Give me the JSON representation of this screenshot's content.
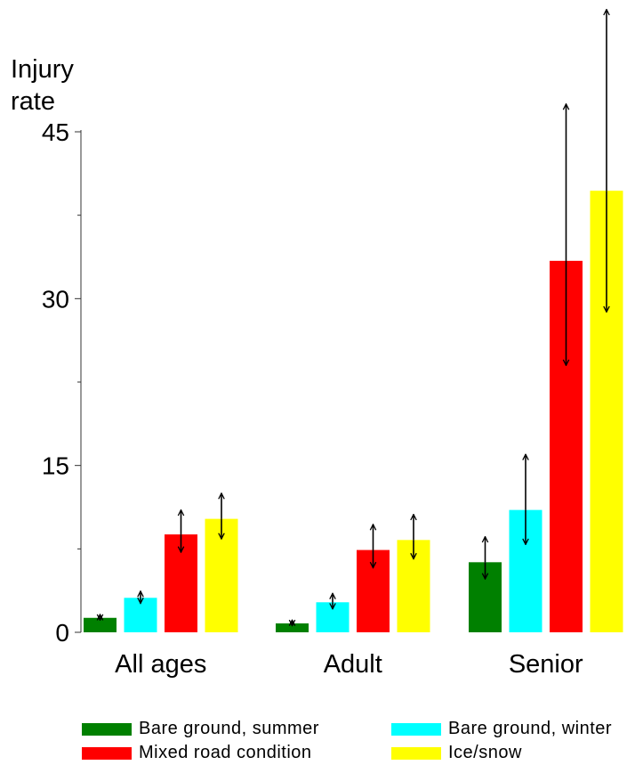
{
  "chart_data": {
    "type": "bar",
    "title": "",
    "ylabel": [
      "Injury",
      "rate"
    ],
    "xlabel": "",
    "ylim": [
      0,
      45
    ],
    "yticks": [
      0,
      15,
      30,
      45
    ],
    "grid": false,
    "legend_position": "bottom",
    "categories": [
      "All ages",
      "Adult",
      "Senior"
    ],
    "series": [
      {
        "name": "Bare ground, summer",
        "color": "#008000",
        "values": [
          1.3,
          0.8,
          6.3
        ],
        "err_low": [
          1.1,
          0.6,
          4.8
        ],
        "err_high": [
          1.6,
          1.1,
          8.6
        ]
      },
      {
        "name": "Bare ground, winter",
        "color": "#00ffff",
        "values": [
          3.1,
          2.7,
          11.0
        ],
        "err_low": [
          2.6,
          2.1,
          7.9
        ],
        "err_high": [
          3.7,
          3.5,
          16.0
        ]
      },
      {
        "name": "Mixed road condition",
        "color": "#ff0000",
        "values": [
          8.8,
          7.4,
          33.4
        ],
        "err_low": [
          7.2,
          5.8,
          24.0
        ],
        "err_high": [
          11.0,
          9.7,
          47.5
        ]
      },
      {
        "name": "Ice/snow",
        "color": "#ffff00",
        "values": [
          10.2,
          8.3,
          39.7
        ],
        "err_low": [
          8.4,
          6.6,
          28.8
        ],
        "err_high": [
          12.5,
          10.6,
          56.0
        ]
      }
    ]
  }
}
